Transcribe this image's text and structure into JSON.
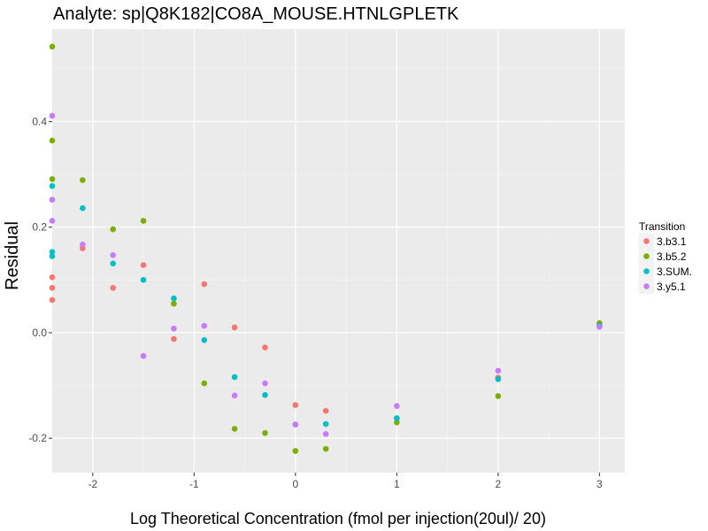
{
  "chart_data": {
    "type": "scatter",
    "title": "Analyte: sp|Q8K182|CO8A_MOUSE.HTNLGPLETK",
    "xlabel": "Log Theoretical Concentration (fmol per injection(20ul)/ 20)",
    "ylabel": "Residual",
    "xlim": [
      -2.4,
      3.25
    ],
    "ylim": [
      -0.265,
      0.575
    ],
    "x_ticks": [
      -2,
      -1,
      0,
      1,
      2,
      3
    ],
    "x_tick_labels": [
      "-2",
      "-1",
      "0",
      "1",
      "2",
      "3"
    ],
    "y_ticks": [
      -0.2,
      0.0,
      0.2,
      0.4
    ],
    "y_tick_labels": [
      "-0.2",
      "0.0",
      "0.2",
      "0.4"
    ],
    "grid": true,
    "legend": {
      "title": "Transition",
      "placement": "right"
    },
    "series": [
      {
        "name": "3.b3.1",
        "color": "#F8766D",
        "points": [
          [
            -2.4,
            0.105
          ],
          [
            -2.4,
            0.085
          ],
          [
            -2.4,
            0.062
          ],
          [
            -2.1,
            0.16
          ],
          [
            -1.8,
            0.085
          ],
          [
            -1.5,
            0.128
          ],
          [
            -1.2,
            -0.012
          ],
          [
            -0.9,
            0.092
          ],
          [
            -0.6,
            0.01
          ],
          [
            -0.3,
            -0.028
          ],
          [
            0.0,
            -0.137
          ],
          [
            0.3,
            -0.148
          ],
          [
            1.0,
            -0.162
          ],
          [
            2.0,
            -0.085
          ],
          [
            3.0,
            0.013
          ]
        ]
      },
      {
        "name": "3.b5.2",
        "color": "#7CAE00",
        "points": [
          [
            -2.4,
            0.542
          ],
          [
            -2.4,
            0.364
          ],
          [
            -2.4,
            0.291
          ],
          [
            -2.1,
            0.289
          ],
          [
            -1.8,
            0.196
          ],
          [
            -1.5,
            0.212
          ],
          [
            -1.2,
            0.055
          ],
          [
            -0.9,
            -0.096
          ],
          [
            -0.6,
            -0.182
          ],
          [
            -0.3,
            -0.19
          ],
          [
            0.0,
            -0.224
          ],
          [
            0.3,
            -0.22
          ],
          [
            1.0,
            -0.17
          ],
          [
            2.0,
            -0.12
          ],
          [
            3.0,
            0.018
          ]
        ]
      },
      {
        "name": "3.SUM.",
        "color": "#00BFC4",
        "points": [
          [
            -2.4,
            0.278
          ],
          [
            -2.4,
            0.153
          ],
          [
            -2.4,
            0.145
          ],
          [
            -2.1,
            0.236
          ],
          [
            -1.8,
            0.131
          ],
          [
            -1.5,
            0.1
          ],
          [
            -1.2,
            0.065
          ],
          [
            -0.9,
            -0.014
          ],
          [
            -0.6,
            -0.084
          ],
          [
            -0.3,
            -0.118
          ],
          [
            0.0,
            -0.174
          ],
          [
            0.3,
            -0.173
          ],
          [
            1.0,
            -0.162
          ],
          [
            2.0,
            -0.088
          ],
          [
            3.0,
            0.013
          ]
        ]
      },
      {
        "name": "3.y5.1",
        "color": "#C77CFF",
        "points": [
          [
            -2.4,
            0.411
          ],
          [
            -2.4,
            0.252
          ],
          [
            -2.4,
            0.212
          ],
          [
            -2.1,
            0.167
          ],
          [
            -1.8,
            0.147
          ],
          [
            -1.5,
            -0.044
          ],
          [
            -1.2,
            0.008
          ],
          [
            -0.9,
            0.013
          ],
          [
            -0.6,
            -0.119
          ],
          [
            -0.3,
            -0.096
          ],
          [
            0.0,
            -0.174
          ],
          [
            0.3,
            -0.192
          ],
          [
            1.0,
            -0.139
          ],
          [
            2.0,
            -0.072
          ],
          [
            3.0,
            0.011
          ]
        ]
      }
    ]
  }
}
